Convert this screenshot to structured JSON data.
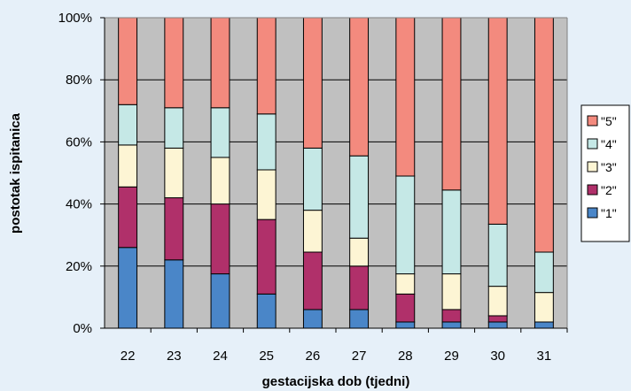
{
  "chart_data": {
    "type": "bar",
    "stacked": true,
    "percent": true,
    "title": "",
    "xlabel": "gestacijska dob (tjedni)",
    "ylabel": "postotak ispitanica",
    "ylim": [
      0,
      100
    ],
    "yticks": [
      "0%",
      "20%",
      "40%",
      "60%",
      "80%",
      "100%"
    ],
    "grid": true,
    "legend_position": "right",
    "categories": [
      "22",
      "23",
      "24",
      "25",
      "26",
      "27",
      "28",
      "29",
      "30",
      "31"
    ],
    "series": [
      {
        "name": "\"1\"",
        "color": "#4a86c8",
        "values": [
          26,
          22,
          17.5,
          11,
          6,
          6,
          2,
          2,
          2,
          2
        ]
      },
      {
        "name": "\"2\"",
        "color": "#b0306a",
        "values": [
          19.5,
          20,
          22.5,
          24,
          18.5,
          14,
          9,
          4,
          2,
          0
        ]
      },
      {
        "name": "\"3\"",
        "color": "#fdf5d4",
        "values": [
          13.5,
          16,
          15,
          16,
          13.5,
          9,
          6.5,
          11.5,
          9.5,
          9.5
        ]
      },
      {
        "name": "\"4\"",
        "color": "#c5e8e6",
        "values": [
          13,
          13,
          16,
          18,
          20,
          26.5,
          31.5,
          27,
          20,
          13
        ]
      },
      {
        "name": "\"5\"",
        "color": "#f38a7e",
        "values": [
          28,
          29,
          29,
          31,
          42,
          44.5,
          51,
          55.5,
          66.5,
          75.5
        ]
      }
    ]
  }
}
